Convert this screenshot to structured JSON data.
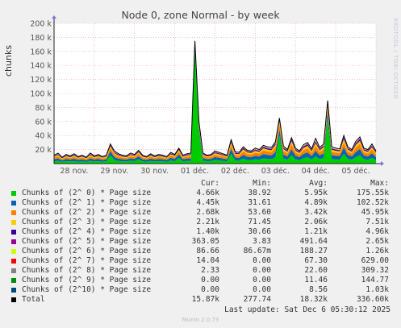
{
  "title": "Node 0, zone Normal - by week",
  "side_text": "RRDTOOL / TOBI OETIKER",
  "footer": {
    "last_update": "Last update: Sat Dec  6 05:30:12 2025",
    "version": "Munin 2.0.73"
  },
  "legend_headers": {
    "cur": "Cur:",
    "min": "Min:",
    "avg": "Avg:",
    "max": "Max:"
  },
  "chart_data": {
    "type": "area",
    "ylabel": "chunks",
    "ylim": [
      0,
      200000
    ],
    "y_ticks": [
      20000,
      40000,
      60000,
      80000,
      100000,
      120000,
      140000,
      160000,
      180000,
      200000
    ],
    "y_tick_labels": [
      "20 k",
      "40 k",
      "60 k",
      "80 k",
      "100 k",
      "120 k",
      "140 k",
      "160 k",
      "180 k",
      "200 k"
    ],
    "x_tick_labels": [
      "28 nov.",
      "29 nov.",
      "30 nov.",
      "01 déc.",
      "02 déc.",
      "03 déc.",
      "04 déc.",
      "05 déc."
    ],
    "x": [
      0,
      1,
      2,
      3,
      4,
      5,
      6,
      7,
      8,
      9,
      10,
      11,
      12,
      13,
      14,
      15,
      16,
      17,
      18,
      19,
      20,
      21,
      22,
      23,
      24,
      25,
      26,
      27,
      28,
      29,
      30,
      31,
      32,
      33,
      34,
      35,
      36,
      37,
      38,
      39,
      40,
      41,
      42,
      43,
      44,
      45,
      46,
      47,
      48,
      49,
      50,
      51,
      52,
      53,
      54,
      55,
      56,
      57,
      58,
      59,
      60,
      61,
      62,
      63,
      64,
      65,
      66,
      67,
      68,
      69,
      70,
      71,
      72,
      73,
      74,
      75,
      76,
      77,
      78,
      79,
      80
    ],
    "total_line": [
      12000,
      15000,
      9000,
      13000,
      11000,
      14000,
      10000,
      12000,
      9000,
      15000,
      11000,
      13000,
      10000,
      12000,
      28000,
      18000,
      14000,
      12000,
      11000,
      15000,
      13000,
      19000,
      12000,
      10000,
      14000,
      11000,
      13000,
      12000,
      10000,
      16000,
      13000,
      22000,
      12000,
      14000,
      15000,
      175000,
      60000,
      15000,
      12000,
      13000,
      18000,
      16000,
      14000,
      12000,
      34000,
      17000,
      16000,
      24000,
      19000,
      18000,
      22000,
      20000,
      26000,
      24000,
      23000,
      31000,
      65000,
      25000,
      20000,
      37000,
      22000,
      18000,
      27000,
      30000,
      21000,
      36000,
      23000,
      28000,
      90000,
      24000,
      22000,
      21000,
      40000,
      24000,
      20000,
      32000,
      38000,
      22000,
      20000,
      28000,
      18000
    ],
    "series": [
      {
        "name": "Chunks of (2^ 0) * Page size",
        "color": "#00cc00",
        "cur": "4.66k",
        "min": "38.92",
        "avg": "5.95k",
        "max": "175.55k",
        "values": [
          3000,
          4000,
          2500,
          3500,
          3000,
          3500,
          2800,
          3200,
          2500,
          4000,
          3000,
          3500,
          2800,
          3200,
          12000,
          5000,
          3800,
          3200,
          3000,
          4000,
          3500,
          6000,
          3200,
          2800,
          3800,
          3000,
          3500,
          3200,
          2800,
          4500,
          3500,
          8000,
          3200,
          3800,
          4000,
          160000,
          45000,
          4200,
          3400,
          3600,
          5000,
          4400,
          3800,
          3300,
          14000,
          4600,
          4300,
          7000,
          5200,
          5000,
          6000,
          5500,
          7500,
          6800,
          6400,
          9000,
          40000,
          7000,
          5600,
          12000,
          6200,
          5000,
          7600,
          9000,
          5800,
          10000,
          6400,
          8000,
          65000,
          6600,
          6000,
          5800,
          14000,
          6800,
          5600,
          9000,
          12000,
          6200,
          5600,
          8000,
          5000
        ]
      },
      {
        "name": "Chunks of (2^ 1) * Page size",
        "color": "#0066b3",
        "cur": "4.45k",
        "min": "31.61",
        "avg": "4.89k",
        "max": "102.52k",
        "values": [
          3000,
          3500,
          2200,
          3200,
          2700,
          3400,
          2500,
          3000,
          2200,
          3500,
          2700,
          3200,
          2500,
          3000,
          6000,
          4200,
          3400,
          3000,
          2700,
          3600,
          3200,
          4500,
          3000,
          2500,
          3400,
          2700,
          3200,
          3000,
          2500,
          3900,
          3200,
          5200,
          3000,
          3400,
          3600,
          8000,
          6000,
          3700,
          3000,
          3200,
          4300,
          3900,
          3400,
          3000,
          7000,
          4100,
          3900,
          5600,
          4600,
          4400,
          5200,
          4800,
          6100,
          5700,
          5400,
          7200,
          9000,
          5900,
          4800,
          8500,
          5200,
          4300,
          6300,
          7000,
          5000,
          8200,
          5400,
          6600,
          9500,
          5600,
          5200,
          5000,
          9000,
          5700,
          4800,
          7500,
          8800,
          5300,
          4800,
          6600,
          4400
        ]
      },
      {
        "name": "Chunks of (2^ 2) * Page size",
        "color": "#ff8000",
        "cur": "2.68k",
        "min": "53.60",
        "avg": "3.42k",
        "max": "45.95k",
        "values": [
          2500,
          3000,
          1800,
          2600,
          2200,
          2800,
          2000,
          2500,
          1800,
          3000,
          2200,
          2600,
          2000,
          2500,
          4500,
          3400,
          2800,
          2500,
          2200,
          2900,
          2600,
          3600,
          2400,
          2000,
          2800,
          2200,
          2600,
          2400,
          2000,
          3100,
          2600,
          4100,
          2400,
          2800,
          2900,
          3500,
          3500,
          3000,
          2400,
          2600,
          3500,
          3200,
          2800,
          2400,
          6000,
          3300,
          3200,
          5000,
          3800,
          3600,
          4400,
          4000,
          5200,
          4800,
          4600,
          6500,
          7000,
          5000,
          4000,
          7500,
          4400,
          3600,
          5400,
          6000,
          4200,
          7000,
          4600,
          5600,
          6000,
          4800,
          4400,
          4200,
          7500,
          4800,
          4000,
          6500,
          7500,
          4400,
          4000,
          5600,
          3600
        ]
      },
      {
        "name": "Chunks of (2^ 3) * Page size",
        "color": "#ffcc00",
        "cur": "2.21k",
        "min": "71.45",
        "avg": "2.06k",
        "max": "7.51k",
        "values": [
          1500,
          1800,
          1100,
          1600,
          1300,
          1700,
          1200,
          1500,
          1100,
          1800,
          1300,
          1600,
          1200,
          1500,
          2500,
          2000,
          1700,
          1500,
          1300,
          1800,
          1600,
          2100,
          1500,
          1200,
          1700,
          1300,
          1600,
          1500,
          1200,
          1900,
          1600,
          2400,
          1500,
          1700,
          1800,
          1500,
          1500,
          1800,
          1500,
          1600,
          2000,
          1900,
          1700,
          1500,
          3000,
          2000,
          1900,
          2800,
          2300,
          2200,
          2600,
          2400,
          3000,
          2800,
          2700,
          3600,
          4000,
          2900,
          2400,
          4200,
          2600,
          2200,
          3100,
          3400,
          2500,
          3900,
          2700,
          3200,
          3500,
          2800,
          2600,
          2500,
          4200,
          2800,
          2400,
          3600,
          4200,
          2600,
          2400,
          3200,
          2200
        ]
      },
      {
        "name": "Chunks of (2^ 4) * Page size",
        "color": "#330099",
        "cur": "1.40k",
        "min": "30.66",
        "avg": "1.21k",
        "max": "4.96k",
        "values": [
          900,
          1000,
          700,
          900,
          800,
          1000,
          700,
          900,
          700,
          1000,
          800,
          900,
          700,
          900,
          1500,
          1200,
          1000,
          900,
          800,
          1000,
          900,
          1200,
          900,
          700,
          1000,
          800,
          900,
          900,
          700,
          1100,
          900,
          1400,
          900,
          1000,
          1000,
          1000,
          900,
          1000,
          900,
          900,
          1200,
          1100,
          1000,
          900,
          1800,
          1200,
          1100,
          1600,
          1300,
          1300,
          1500,
          1400,
          1700,
          1600,
          1600,
          2100,
          2400,
          1700,
          1400,
          2500,
          1500,
          1300,
          1800,
          2000,
          1500,
          2300,
          1600,
          1900,
          2000,
          1600,
          1500,
          1500,
          2500,
          1600,
          1400,
          2100,
          2500,
          1500,
          1400,
          1900,
          1300
        ]
      },
      {
        "name": "Chunks of (2^ 5) * Page size",
        "color": "#990099",
        "cur": "363.05",
        "min": "3.83",
        "avg": "491.64",
        "max": "2.65k",
        "values": [
          300,
          400,
          250,
          350,
          300,
          400,
          280,
          350,
          250,
          400,
          300,
          350,
          280,
          350,
          600,
          450,
          400,
          350,
          300,
          400,
          350,
          480,
          350,
          280,
          400,
          300,
          350,
          350,
          280,
          420,
          350,
          550,
          350,
          400,
          400,
          400,
          350,
          400,
          350,
          350,
          480,
          440,
          400,
          350,
          700,
          460,
          440,
          640,
          520,
          500,
          600,
          560,
          700,
          640,
          620,
          850,
          950,
          680,
          560,
          1000,
          600,
          500,
          720,
          800,
          580,
          900,
          620,
          760,
          800,
          640,
          600,
          580,
          1000,
          640,
          560,
          840,
          1000,
          600,
          560,
          760,
          500
        ]
      },
      {
        "name": "Chunks of (2^ 6) * Page size",
        "color": "#ccff00",
        "cur": "86.66",
        "min": "86.67m",
        "avg": "188.27",
        "max": "1.26k",
        "values": [
          100,
          150,
          80,
          120,
          100,
          140,
          90,
          120,
          80,
          150,
          100,
          120,
          90,
          120,
          250,
          180,
          150,
          120,
          100,
          150,
          130,
          190,
          120,
          90,
          150,
          100,
          130,
          120,
          90,
          160,
          130,
          220,
          120,
          150,
          150,
          150,
          130,
          150,
          130,
          130,
          190,
          170,
          150,
          130,
          280,
          180,
          170,
          250,
          200,
          190,
          230,
          210,
          270,
          250,
          240,
          330,
          370,
          260,
          210,
          390,
          230,
          190,
          280,
          310,
          220,
          350,
          240,
          290,
          310,
          250,
          230,
          220,
          390,
          250,
          210,
          330,
          390,
          230,
          210,
          290,
          190
        ]
      },
      {
        "name": "Chunks of (2^ 7) * Page size",
        "color": "#ff0000",
        "cur": "14.04",
        "min": "0.00",
        "avg": "67.30",
        "max": "629.00",
        "values": [
          40,
          60,
          30,
          50,
          40,
          55,
          35,
          50,
          30,
          60,
          40,
          50,
          35,
          50,
          100,
          70,
          60,
          50,
          40,
          60,
          50,
          75,
          50,
          35,
          60,
          40,
          50,
          50,
          35,
          65,
          50,
          90,
          50,
          60,
          60,
          60,
          50,
          60,
          50,
          50,
          75,
          70,
          60,
          50,
          110,
          70,
          70,
          100,
          80,
          75,
          90,
          85,
          110,
          100,
          95,
          130,
          150,
          105,
          85,
          155,
          90,
          75,
          110,
          125,
          90,
          140,
          95,
          115,
          125,
          100,
          90,
          90,
          155,
          100,
          85,
          130,
          155,
          90,
          85,
          115,
          75
        ]
      },
      {
        "name": "Chunks of (2^ 8) * Page size",
        "color": "#808080",
        "cur": "2.33",
        "min": "0.00",
        "avg": "22.60",
        "max": "309.32",
        "values": [
          15,
          20,
          10,
          18,
          14,
          20,
          12,
          18,
          10,
          20,
          14,
          18,
          12,
          18,
          35,
          25,
          20,
          18,
          14,
          20,
          18,
          26,
          18,
          12,
          20,
          14,
          18,
          18,
          12,
          22,
          18,
          30,
          18,
          20,
          20,
          20,
          18,
          20,
          18,
          18,
          26,
          24,
          20,
          18,
          38,
          24,
          24,
          34,
          28,
          26,
          32,
          30,
          38,
          34,
          32,
          45,
          50,
          36,
          30,
          52,
          32,
          26,
          38,
          42,
          30,
          48,
          32,
          40,
          42,
          34,
          32,
          30,
          52,
          34,
          30,
          45,
          52,
          32,
          30,
          40,
          26
        ]
      },
      {
        "name": "Chunks of (2^ 9) * Page size",
        "color": "#008f00",
        "cur": "0.00",
        "min": "0.00",
        "avg": "11.46",
        "max": "144.77",
        "values": [
          8,
          10,
          5,
          9,
          7,
          10,
          6,
          9,
          5,
          10,
          7,
          9,
          6,
          9,
          18,
          12,
          10,
          9,
          7,
          10,
          9,
          13,
          9,
          6,
          10,
          7,
          9,
          9,
          6,
          11,
          9,
          15,
          9,
          10,
          10,
          10,
          9,
          10,
          9,
          9,
          13,
          12,
          10,
          9,
          19,
          12,
          12,
          17,
          14,
          13,
          16,
          15,
          19,
          17,
          16,
          22,
          25,
          18,
          15,
          26,
          16,
          13,
          19,
          21,
          15,
          24,
          16,
          20,
          21,
          17,
          16,
          15,
          26,
          17,
          15,
          22,
          26,
          16,
          15,
          20,
          13
        ]
      },
      {
        "name": "Chunks of (2^10) * Page size",
        "color": "#00487d",
        "cur": "0.00",
        "min": "0.00",
        "avg": "8.56",
        "max": "1.03k",
        "values": [
          6,
          8,
          4,
          7,
          5,
          8,
          4,
          7,
          4,
          8,
          5,
          7,
          4,
          7,
          14,
          9,
          8,
          7,
          5,
          8,
          7,
          10,
          7,
          4,
          8,
          5,
          7,
          7,
          4,
          8,
          7,
          12,
          7,
          8,
          8,
          8,
          7,
          8,
          7,
          7,
          10,
          9,
          8,
          7,
          15,
          9,
          9,
          13,
          11,
          10,
          12,
          11,
          15,
          13,
          12,
          17,
          19,
          14,
          11,
          20,
          12,
          10,
          15,
          16,
          11,
          18,
          12,
          15,
          16,
          13,
          12,
          11,
          20,
          13,
          11,
          17,
          20,
          12,
          11,
          15,
          10
        ]
      }
    ],
    "total": {
      "name": "Total",
      "color": "#000000",
      "cur": "15.87k",
      "min": "277.74",
      "avg": "18.32k",
      "max": "336.60k"
    }
  }
}
